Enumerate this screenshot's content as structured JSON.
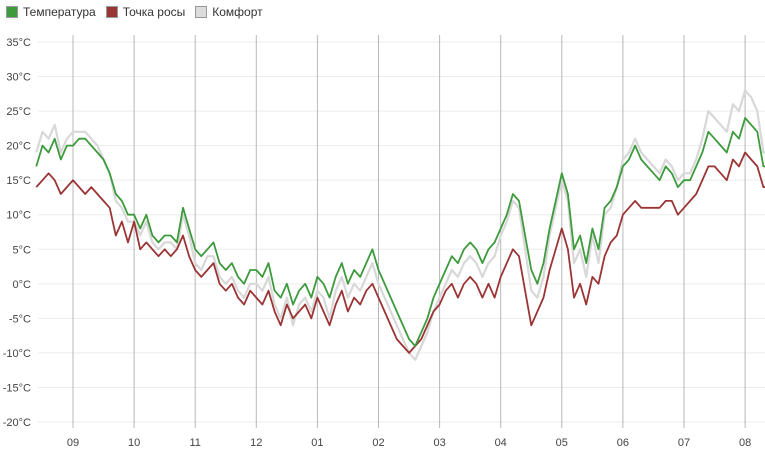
{
  "colors": {
    "temperature": "#3d9a3d",
    "dewpoint": "#9b3535",
    "comfort": "#d8d8d8",
    "vgrid": "#b8b8b8",
    "hgrid": "#ececec"
  },
  "legend": [
    {
      "label": "Температура",
      "color": "#3d9a3d"
    },
    {
      "label": "Точка росы",
      "color": "#9b3535"
    },
    {
      "label": "Комфорт",
      "color": "#dcdcdc"
    }
  ],
  "chart_data": {
    "type": "line",
    "title": "",
    "xlabel": "",
    "ylabel": "",
    "x_start_label": "09",
    "x_tick_labels": [
      "09",
      "10",
      "11",
      "12",
      "01",
      "02",
      "03",
      "04",
      "05",
      "06",
      "07",
      "08"
    ],
    "x_range_months": [
      -0.6,
      11.4
    ],
    "y_tick_labels": [
      "35°C",
      "30°C",
      "25°C",
      "20°C",
      "15°C",
      "10°C",
      "5°C",
      "0°C",
      "-5°C",
      "-10°C",
      "-15°C",
      "-20°C"
    ],
    "ylim": [
      -21,
      36
    ],
    "grid": {
      "vertical": true,
      "horizontal": true
    },
    "legend_position": "top-left",
    "series": [
      {
        "name": "Температура",
        "key": "temperature",
        "x": [
          -0.6,
          -0.5,
          -0.4,
          -0.3,
          -0.2,
          -0.1,
          0.0,
          0.1,
          0.2,
          0.3,
          0.4,
          0.5,
          0.6,
          0.7,
          0.8,
          0.9,
          1.0,
          1.1,
          1.2,
          1.3,
          1.4,
          1.5,
          1.6,
          1.7,
          1.8,
          1.9,
          2.0,
          2.1,
          2.2,
          2.3,
          2.4,
          2.5,
          2.6,
          2.7,
          2.8,
          2.9,
          3.0,
          3.1,
          3.2,
          3.3,
          3.4,
          3.5,
          3.6,
          3.7,
          3.8,
          3.9,
          4.0,
          4.1,
          4.2,
          4.3,
          4.4,
          4.5,
          4.6,
          4.7,
          4.8,
          4.9,
          5.0,
          5.1,
          5.2,
          5.3,
          5.4,
          5.5,
          5.6,
          5.7,
          5.8,
          5.9,
          6.0,
          6.1,
          6.2,
          6.3,
          6.4,
          6.5,
          6.6,
          6.7,
          6.8,
          6.9,
          7.0,
          7.1,
          7.2,
          7.3,
          7.4,
          7.5,
          7.6,
          7.7,
          7.8,
          7.9,
          8.0,
          8.1,
          8.2,
          8.3,
          8.4,
          8.5,
          8.6,
          8.7,
          8.8,
          8.9,
          9.0,
          9.1,
          9.2,
          9.3,
          9.4,
          9.5,
          9.6,
          9.7,
          9.8,
          9.9,
          10.0,
          10.1,
          10.2,
          10.3,
          10.4,
          10.5,
          10.6,
          10.7,
          10.8,
          10.9,
          11.0,
          11.1,
          11.2,
          11.3,
          11.4
        ],
        "values": [
          17,
          20,
          19,
          21,
          18,
          20,
          20,
          21,
          21,
          20,
          19,
          18,
          16,
          13,
          12,
          10,
          10,
          8,
          10,
          7,
          6,
          7,
          7,
          6,
          11,
          8,
          5,
          4,
          5,
          6,
          3,
          2,
          3,
          1,
          0,
          2,
          2,
          1,
          3,
          -1,
          -2,
          0,
          -3,
          -1,
          0,
          -2,
          1,
          0,
          -2,
          1,
          3,
          0,
          2,
          1,
          3,
          5,
          2,
          0,
          -2,
          -4,
          -6,
          -8,
          -9,
          -7,
          -5,
          -2,
          0,
          2,
          4,
          3,
          5,
          6,
          5,
          3,
          5,
          6,
          8,
          10,
          13,
          12,
          7,
          2,
          0,
          3,
          8,
          12,
          16,
          13,
          5,
          7,
          3,
          8,
          5,
          11,
          12,
          14,
          17,
          18,
          20,
          18,
          17,
          16,
          15,
          17,
          16,
          14,
          15,
          15,
          17,
          19,
          22,
          21,
          20,
          19,
          22,
          21,
          24,
          23,
          22,
          17,
          17
        ]
      },
      {
        "name": "Точка росы",
        "key": "dewpoint",
        "x": [
          -0.6,
          -0.5,
          -0.4,
          -0.3,
          -0.2,
          -0.1,
          0.0,
          0.1,
          0.2,
          0.3,
          0.4,
          0.5,
          0.6,
          0.7,
          0.8,
          0.9,
          1.0,
          1.1,
          1.2,
          1.3,
          1.4,
          1.5,
          1.6,
          1.7,
          1.8,
          1.9,
          2.0,
          2.1,
          2.2,
          2.3,
          2.4,
          2.5,
          2.6,
          2.7,
          2.8,
          2.9,
          3.0,
          3.1,
          3.2,
          3.3,
          3.4,
          3.5,
          3.6,
          3.7,
          3.8,
          3.9,
          4.0,
          4.1,
          4.2,
          4.3,
          4.4,
          4.5,
          4.6,
          4.7,
          4.8,
          4.9,
          5.0,
          5.1,
          5.2,
          5.3,
          5.4,
          5.5,
          5.6,
          5.7,
          5.8,
          5.9,
          6.0,
          6.1,
          6.2,
          6.3,
          6.4,
          6.5,
          6.6,
          6.7,
          6.8,
          6.9,
          7.0,
          7.1,
          7.2,
          7.3,
          7.4,
          7.5,
          7.6,
          7.7,
          7.8,
          7.9,
          8.0,
          8.1,
          8.2,
          8.3,
          8.4,
          8.5,
          8.6,
          8.7,
          8.8,
          8.9,
          9.0,
          9.1,
          9.2,
          9.3,
          9.4,
          9.5,
          9.6,
          9.7,
          9.8,
          9.9,
          10.0,
          10.1,
          10.2,
          10.3,
          10.4,
          10.5,
          10.6,
          10.7,
          10.8,
          10.9,
          11.0,
          11.1,
          11.2,
          11.3,
          11.4
        ],
        "values": [
          14,
          15,
          16,
          15,
          13,
          14,
          15,
          14,
          13,
          14,
          13,
          12,
          11,
          7,
          9,
          6,
          9,
          5,
          6,
          5,
          4,
          5,
          4,
          5,
          7,
          4,
          2,
          1,
          2,
          3,
          0,
          -1,
          0,
          -2,
          -3,
          -1,
          -2,
          -3,
          -1,
          -4,
          -6,
          -3,
          -5,
          -4,
          -3,
          -5,
          -2,
          -4,
          -6,
          -3,
          -1,
          -4,
          -2,
          -3,
          -1,
          0,
          -2,
          -4,
          -6,
          -8,
          -9,
          -10,
          -9,
          -8,
          -6,
          -4,
          -3,
          -1,
          0,
          -2,
          0,
          1,
          0,
          -2,
          0,
          -2,
          1,
          3,
          5,
          4,
          -1,
          -6,
          -4,
          -2,
          2,
          5,
          8,
          5,
          -2,
          0,
          -3,
          1,
          0,
          4,
          6,
          7,
          10,
          11,
          12,
          11,
          11,
          11,
          11,
          12,
          12,
          10,
          11,
          12,
          13,
          15,
          17,
          17,
          16,
          15,
          18,
          17,
          19,
          18,
          17,
          14,
          14
        ]
      },
      {
        "name": "Комфорт",
        "key": "comfort",
        "x": [
          -0.6,
          -0.5,
          -0.4,
          -0.3,
          -0.2,
          -0.1,
          0.0,
          0.1,
          0.2,
          0.3,
          0.4,
          0.5,
          0.6,
          0.7,
          0.8,
          0.9,
          1.0,
          1.1,
          1.2,
          1.3,
          1.4,
          1.5,
          1.6,
          1.7,
          1.8,
          1.9,
          2.0,
          2.1,
          2.2,
          2.3,
          2.4,
          2.5,
          2.6,
          2.7,
          2.8,
          2.9,
          3.0,
          3.1,
          3.2,
          3.3,
          3.4,
          3.5,
          3.6,
          3.7,
          3.8,
          3.9,
          4.0,
          4.1,
          4.2,
          4.3,
          4.4,
          4.5,
          4.6,
          4.7,
          4.8,
          4.9,
          5.0,
          5.1,
          5.2,
          5.3,
          5.4,
          5.5,
          5.6,
          5.7,
          5.8,
          5.9,
          6.0,
          6.1,
          6.2,
          6.3,
          6.4,
          6.5,
          6.6,
          6.7,
          6.8,
          6.9,
          7.0,
          7.1,
          7.2,
          7.3,
          7.4,
          7.5,
          7.6,
          7.7,
          7.8,
          7.9,
          8.0,
          8.1,
          8.2,
          8.3,
          8.4,
          8.5,
          8.6,
          8.7,
          8.8,
          8.9,
          9.0,
          9.1,
          9.2,
          9.3,
          9.4,
          9.5,
          9.6,
          9.7,
          9.8,
          9.9,
          10.0,
          10.1,
          10.2,
          10.3,
          10.4,
          10.5,
          10.6,
          10.7,
          10.8,
          10.9,
          11.0,
          11.1,
          11.2,
          11.3,
          11.4
        ],
        "values": [
          19,
          22,
          21,
          23,
          19,
          21,
          22,
          22,
          22,
          21,
          20,
          18,
          16,
          12,
          11,
          9,
          9,
          7,
          9,
          6,
          5,
          6,
          6,
          5,
          10,
          7,
          3,
          2,
          4,
          4,
          1,
          0,
          1,
          -1,
          -2,
          0,
          0,
          -1,
          1,
          -3,
          -5,
          -2,
          -6,
          -3,
          -2,
          -4,
          -1,
          -2,
          -5,
          -1,
          1,
          -2,
          0,
          -1,
          1,
          3,
          0,
          -2,
          -4,
          -6,
          -8,
          -10,
          -11,
          -9,
          -7,
          -4,
          -2,
          0,
          2,
          1,
          3,
          4,
          3,
          1,
          3,
          4,
          7,
          9,
          12,
          11,
          5,
          -1,
          -2,
          1,
          7,
          11,
          15,
          12,
          3,
          5,
          1,
          7,
          3,
          10,
          11,
          14,
          18,
          19,
          21,
          19,
          18,
          17,
          16,
          18,
          17,
          15,
          16,
          16,
          18,
          21,
          25,
          24,
          23,
          22,
          26,
          25,
          28,
          27,
          25,
          19,
          19
        ]
      }
    ]
  }
}
